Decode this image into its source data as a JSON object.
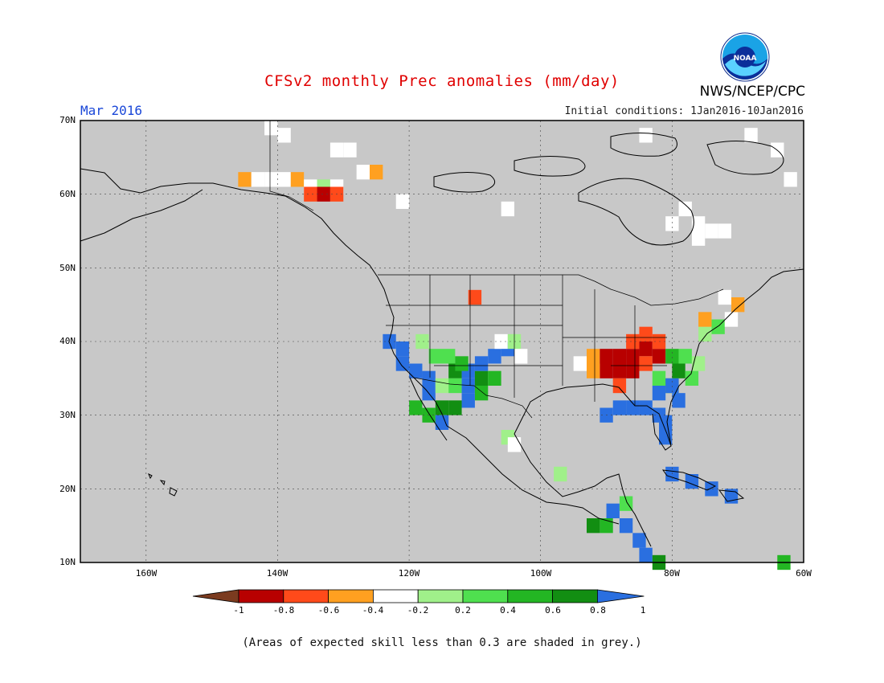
{
  "title": "CFSv2 monthly Prec anomalies (mm/day)",
  "agency": "NWS/NCEP/CPC",
  "logo_text": "NOAA",
  "valid_month": "Mar 2016",
  "initial_conditions": "Initial conditions: 1Jan2016-10Jan2016",
  "footnote": "(Areas of expected skill less than 0.3 are shaded in grey.)",
  "map": {
    "lat_labels": [
      "70N",
      "60N",
      "50N",
      "40N",
      "30N",
      "20N",
      "10N"
    ],
    "lon_labels": [
      "160W",
      "140W",
      "120W",
      "100W",
      "80W",
      "60W"
    ],
    "lat_range": [
      10,
      70
    ],
    "lon_range": [
      -170,
      -60
    ],
    "background_color": "#c8c8c8"
  },
  "colorbar": {
    "ticks": [
      "-1",
      "-0.8",
      "-0.6",
      "-0.4",
      "-0.2",
      "0.2",
      "0.4",
      "0.6",
      "0.8",
      "1"
    ],
    "colors": [
      "#7b3b1f",
      "#b80000",
      "#ff4a1a",
      "#ffa020",
      "#ffffff",
      "#a0f08a",
      "#4fe04f",
      "#23b623",
      "#128e12",
      "#2a6fe0"
    ]
  },
  "colors": {
    "brown": "#7b3b1f",
    "dark_red": "#b80000",
    "red": "#ff4a1a",
    "orange": "#ffa020",
    "white": "#ffffff",
    "light_green": "#a0f08a",
    "green": "#4fe04f",
    "mid_green": "#23b623",
    "dark_green": "#128e12",
    "blue": "#2a6fe0"
  }
}
